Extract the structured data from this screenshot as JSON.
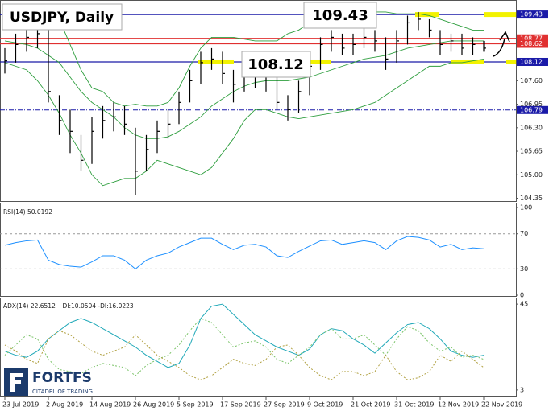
{
  "chart_data": [
    {
      "type": "ohlc",
      "title": "USDJPY, Daily",
      "bar_color": "#000000",
      "band_color": "#2e9e3e",
      "high": [
        108.5,
        108.9,
        109.1,
        109.3,
        109.0,
        107.2,
        106.8,
        106.1,
        106.6,
        106.9,
        107.0,
        106.9,
        106.3,
        106.1,
        106.5,
        106.8,
        107.3,
        107.9,
        108.4,
        108.5,
        108.4,
        107.9,
        108.0,
        108.1,
        108.0,
        107.7,
        107.2,
        107.6,
        108.3,
        108.8,
        109.0,
        108.9,
        108.9,
        109.1,
        109.0,
        108.8,
        109.0,
        109.4,
        109.5,
        109.3,
        109.0,
        108.9,
        108.9,
        108.8,
        108.7
      ],
      "low": [
        107.8,
        108.1,
        108.4,
        108.5,
        107.0,
        106.1,
        105.6,
        105.1,
        105.3,
        106.0,
        106.2,
        106.1,
        104.45,
        105.1,
        105.6,
        106.0,
        106.4,
        107.0,
        107.5,
        107.9,
        107.5,
        107.0,
        107.3,
        107.4,
        107.3,
        106.8,
        106.5,
        106.7,
        107.2,
        107.9,
        108.4,
        108.3,
        108.3,
        108.5,
        108.4,
        107.9,
        108.1,
        108.6,
        109.0,
        108.8,
        108.3,
        108.4,
        108.3,
        108.3,
        108.4
      ],
      "close": [
        108.15,
        108.6,
        108.8,
        108.9,
        107.3,
        106.5,
        106.2,
        105.4,
        106.2,
        106.5,
        106.6,
        106.4,
        105.1,
        105.7,
        106.2,
        106.4,
        107.0,
        107.6,
        108.1,
        108.2,
        107.8,
        107.5,
        107.7,
        107.8,
        107.7,
        107.0,
        106.8,
        107.3,
        108.0,
        108.6,
        108.8,
        108.5,
        108.6,
        108.8,
        108.7,
        108.2,
        108.7,
        109.2,
        109.3,
        109.0,
        108.6,
        108.7,
        108.5,
        108.6,
        108.5
      ],
      "upper": [
        109.4,
        109.45,
        109.5,
        109.55,
        109.6,
        109.3,
        108.6,
        107.9,
        107.4,
        107.3,
        107.0,
        106.9,
        106.95,
        106.9,
        106.9,
        107.0,
        107.4,
        108.0,
        108.5,
        108.8,
        108.8,
        108.8,
        108.75,
        108.7,
        108.7,
        108.7,
        108.9,
        109.0,
        109.2,
        109.3,
        109.35,
        109.4,
        109.45,
        109.5,
        109.5,
        109.5,
        109.45,
        109.45,
        109.45,
        109.4,
        109.3,
        109.2,
        109.1,
        109.0,
        109.0
      ],
      "middle": [
        108.7,
        108.65,
        108.6,
        108.5,
        108.3,
        108.1,
        107.7,
        107.3,
        107.0,
        106.8,
        106.6,
        106.3,
        106.1,
        106.0,
        106.0,
        106.05,
        106.2,
        106.4,
        106.6,
        106.9,
        107.1,
        107.3,
        107.45,
        107.55,
        107.6,
        107.6,
        107.6,
        107.65,
        107.7,
        107.8,
        107.9,
        108.0,
        108.1,
        108.2,
        108.25,
        108.3,
        108.4,
        108.5,
        108.55,
        108.6,
        108.65,
        108.7,
        108.7,
        108.7,
        108.7
      ],
      "lower": [
        108.1,
        108.0,
        107.9,
        107.6,
        107.2,
        106.7,
        106.1,
        105.6,
        105.0,
        104.7,
        104.8,
        104.9,
        104.9,
        105.1,
        105.4,
        105.3,
        105.2,
        105.1,
        105.0,
        105.2,
        105.6,
        106.0,
        106.5,
        106.8,
        106.8,
        106.7,
        106.6,
        106.55,
        106.6,
        106.65,
        106.7,
        106.75,
        106.8,
        106.9,
        107.0,
        107.2,
        107.4,
        107.6,
        107.8,
        108.0,
        108.0,
        108.1,
        108.1,
        108.15,
        108.2
      ],
      "ylim": [
        104.25,
        109.81
      ],
      "yticks": [
        {
          "value": 107.6,
          "label": "107.60"
        },
        106.95,
        {
          "value": 106.3,
          "label": "106.30"
        },
        105.65,
        {
          "value": 105,
          "label": "105.00"
        },
        104.35
      ],
      "levels": [
        {
          "value": 109.43,
          "color": "#1a1aa8",
          "style": "solid"
        },
        {
          "value": 108.77,
          "color": "#e03030",
          "style": "solid"
        },
        {
          "value": 108.62,
          "color": "#e03030",
          "style": "solid"
        },
        {
          "value": 108.12,
          "color": "#1a1aa8",
          "style": "solid"
        },
        {
          "value": 106.79,
          "color": "#1a1aa8",
          "style": "dashdot"
        }
      ],
      "annotations": [
        "109.43",
        "108.12"
      ]
    },
    {
      "type": "line",
      "title": "RSI(14) 50.0192",
      "color": "#1e90ff",
      "values": [
        57,
        60,
        62,
        63,
        40,
        35,
        33,
        32,
        38,
        45,
        45,
        40,
        30,
        40,
        45,
        48,
        55,
        60,
        65,
        65,
        58,
        52,
        57,
        58,
        55,
        45,
        43,
        50,
        56,
        62,
        63,
        58,
        60,
        62,
        60,
        52,
        62,
        67,
        66,
        63,
        55,
        58,
        52,
        54,
        53
      ],
      "ylim": [
        -1.8,
        104.6
      ],
      "yticks": [
        100,
        70,
        30,
        0
      ],
      "levels": [
        70,
        30
      ]
    },
    {
      "type": "line",
      "title": "ADX(14) 22.6512 +DI:10.0504 -DI:16.0223",
      "series": [
        {
          "color": "#1fa8b8",
          "dash": "none",
          "values": [
            22,
            20,
            19,
            22,
            28,
            32,
            36,
            38,
            36,
            33,
            30,
            27,
            24,
            20,
            17,
            14,
            16,
            25,
            38,
            44,
            45,
            40,
            35,
            30,
            27,
            24,
            22,
            20,
            23,
            30,
            33,
            32,
            28,
            25,
            21,
            26,
            31,
            35,
            36,
            33,
            28,
            22,
            20,
            19,
            20
          ]
        },
        {
          "color": "#7cc46a",
          "dash": "2,2",
          "values": [
            20,
            25,
            30,
            28,
            18,
            13,
            12,
            11,
            14,
            16,
            15,
            14,
            10,
            15,
            18,
            20,
            25,
            32,
            38,
            36,
            30,
            24,
            26,
            27,
            24,
            18,
            16,
            20,
            24,
            30,
            33,
            28,
            28,
            30,
            25,
            20,
            28,
            34,
            32,
            26,
            22,
            24,
            19,
            20,
            18
          ]
        },
        {
          "color": "#b0a040",
          "dash": "2,2",
          "values": [
            25,
            22,
            18,
            16,
            28,
            32,
            30,
            26,
            22,
            20,
            22,
            24,
            30,
            25,
            20,
            17,
            14,
            10,
            8,
            10,
            14,
            18,
            16,
            15,
            18,
            24,
            25,
            20,
            14,
            10,
            8,
            12,
            12,
            10,
            12,
            20,
            12,
            8,
            9,
            12,
            20,
            17,
            22,
            18,
            14
          ]
        }
      ],
      "ylim": [
        -0.2,
        47.8
      ],
      "yticks": [
        45,
        3
      ],
      "categories": [
        "23 Jul 2019",
        null,
        null,
        null,
        "2 Aug 2019",
        null,
        null,
        null,
        "14 Aug 2019",
        null,
        null,
        null,
        "26 Aug 2019",
        null,
        null,
        null,
        "5 Sep 2019",
        null,
        null,
        null,
        "17 Sep 2019",
        null,
        null,
        null,
        "27 Sep 2019",
        null,
        null,
        null,
        "9 Oct 2019",
        null,
        null,
        null,
        "21 Oct 2019",
        null,
        null,
        null,
        "31 Oct 2019",
        null,
        null,
        null,
        "12 Nov 2019",
        null,
        null,
        null,
        "22 Nov 2019"
      ]
    }
  ],
  "branding": {
    "name": "FORTFS",
    "tagline": "CITADEL OF TRADING"
  }
}
